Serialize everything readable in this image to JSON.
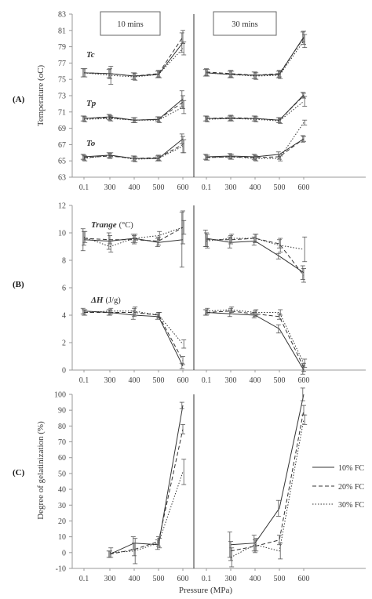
{
  "panel_labels": [
    "(A)",
    "(B)",
    "(C)"
  ],
  "time_labels": [
    "10 mins",
    "30 mins"
  ],
  "x_title": "Pressure (MPa)",
  "legend": [
    {
      "label": "10% FC",
      "dash": "solid"
    },
    {
      "label": "20% FC",
      "dash": "dashed"
    },
    {
      "label": "30% FC",
      "dash": "dotted"
    }
  ],
  "chart_data": [
    {
      "id": "A",
      "type": "line",
      "ylabel": "Temperature (oC)",
      "ylim": [
        63,
        83
      ],
      "yticks": [
        "63",
        "65",
        "67",
        "69",
        "71",
        "73",
        "75",
        "77",
        "79",
        "81",
        "83"
      ],
      "x": [
        "0.1",
        "300",
        "400",
        "500",
        "600"
      ],
      "groups": [
        {
          "name": "Tc",
          "subpanels": [
            {
              "time": "10 mins",
              "series": [
                {
                  "name": "10% FC",
                  "values": [
                    75.8,
                    75.7,
                    75.4,
                    75.6,
                    79.5
                  ],
                  "err": [
                    0.5,
                    0.5,
                    0.4,
                    0.4,
                    1.2
                  ]
                },
                {
                  "name": "20% FC",
                  "values": [
                    75.8,
                    75.7,
                    75.4,
                    75.7,
                    80.2
                  ],
                  "err": [
                    0.5,
                    0.6,
                    0.4,
                    0.4,
                    0.8
                  ]
                },
                {
                  "name": "30% FC",
                  "values": [
                    75.8,
                    75.5,
                    75.3,
                    75.6,
                    78.8
                  ],
                  "err": [
                    0.5,
                    1.1,
                    0.4,
                    0.4,
                    0.8
                  ]
                }
              ]
            },
            {
              "time": "30 mins",
              "series": [
                {
                  "name": "10% FC",
                  "values": [
                    75.8,
                    75.6,
                    75.5,
                    75.6,
                    80.2
                  ],
                  "err": [
                    0.4,
                    0.4,
                    0.4,
                    0.4,
                    0.6
                  ]
                },
                {
                  "name": "20% FC",
                  "values": [
                    75.9,
                    75.7,
                    75.5,
                    75.7,
                    80.1
                  ],
                  "err": [
                    0.4,
                    0.4,
                    0.4,
                    0.4,
                    0.8
                  ]
                },
                {
                  "name": "30% FC",
                  "values": [
                    75.8,
                    75.6,
                    75.4,
                    75.5,
                    79.7
                  ],
                  "err": [
                    0.4,
                    0.4,
                    0.4,
                    0.4,
                    0.8
                  ]
                }
              ]
            }
          ]
        },
        {
          "name": "Tp",
          "subpanels": [
            {
              "time": "10 mins",
              "series": [
                {
                  "name": "10% FC",
                  "values": [
                    70.2,
                    70.4,
                    70.0,
                    70.1,
                    72.6
                  ],
                  "err": [
                    0.3,
                    0.3,
                    0.3,
                    0.3,
                    1.0
                  ]
                },
                {
                  "name": "20% FC",
                  "values": [
                    70.2,
                    70.3,
                    70.0,
                    70.1,
                    72.2
                  ],
                  "err": [
                    0.3,
                    0.3,
                    0.3,
                    0.3,
                    0.8
                  ]
                },
                {
                  "name": "30% FC",
                  "values": [
                    70.1,
                    70.2,
                    70.0,
                    70.0,
                    71.6
                  ],
                  "err": [
                    0.3,
                    0.3,
                    0.3,
                    0.3,
                    0.8
                  ]
                }
              ]
            },
            {
              "time": "30 mins",
              "series": [
                {
                  "name": "10% FC",
                  "values": [
                    70.2,
                    70.2,
                    70.2,
                    70.0,
                    73.1
                  ],
                  "err": [
                    0.3,
                    0.3,
                    0.3,
                    0.3,
                    0.3
                  ]
                },
                {
                  "name": "20% FC",
                  "values": [
                    70.2,
                    70.3,
                    70.2,
                    70.0,
                    73.0
                  ],
                  "err": [
                    0.3,
                    0.3,
                    0.3,
                    0.3,
                    0.3
                  ]
                },
                {
                  "name": "30% FC",
                  "values": [
                    70.1,
                    70.2,
                    70.1,
                    69.9,
                    72.3
                  ],
                  "err": [
                    0.3,
                    0.3,
                    0.3,
                    0.3,
                    0.6
                  ]
                }
              ]
            }
          ]
        },
        {
          "name": "To",
          "subpanels": [
            {
              "time": "10 mins",
              "series": [
                {
                  "name": "10% FC",
                  "values": [
                    65.5,
                    65.7,
                    65.3,
                    65.3,
                    67.7
                  ],
                  "err": [
                    0.3,
                    0.3,
                    0.3,
                    0.3,
                    0.6
                  ]
                },
                {
                  "name": "20% FC",
                  "values": [
                    65.4,
                    65.6,
                    65.3,
                    65.4,
                    67.0
                  ],
                  "err": [
                    0.3,
                    0.3,
                    0.3,
                    0.3,
                    1.0
                  ]
                },
                {
                  "name": "30% FC",
                  "values": [
                    65.3,
                    65.7,
                    65.2,
                    65.3,
                    66.8
                  ],
                  "err": [
                    0.3,
                    0.3,
                    0.3,
                    0.3,
                    0.8
                  ]
                }
              ]
            },
            {
              "time": "30 mins",
              "series": [
                {
                  "name": "10% FC",
                  "values": [
                    65.5,
                    65.6,
                    65.5,
                    65.8,
                    67.7
                  ],
                  "err": [
                    0.3,
                    0.3,
                    0.3,
                    0.3,
                    0.4
                  ]
                },
                {
                  "name": "20% FC",
                  "values": [
                    65.4,
                    65.5,
                    65.4,
                    65.5,
                    67.7
                  ],
                  "err": [
                    0.3,
                    0.3,
                    0.3,
                    0.3,
                    0.3
                  ]
                },
                {
                  "name": "30% FC",
                  "values": [
                    65.4,
                    65.5,
                    65.3,
                    65.3,
                    69.7
                  ],
                  "err": [
                    0.3,
                    0.3,
                    0.3,
                    0.3,
                    0.3
                  ]
                }
              ]
            }
          ]
        }
      ]
    },
    {
      "id": "B",
      "type": "line",
      "ylabel": "",
      "ylim": [
        0,
        12
      ],
      "yticks": [
        "0",
        "2",
        "4",
        "6",
        "8",
        "10",
        "12"
      ],
      "x": [
        "0.1",
        "300",
        "400",
        "500",
        "600"
      ],
      "groups": [
        {
          "name": "Trange",
          "unit": "(°C)",
          "subpanels": [
            {
              "time": "10 mins",
              "series": [
                {
                  "name": "10% FC",
                  "values": [
                    9.5,
                    9.4,
                    9.6,
                    9.3,
                    9.5
                  ],
                  "err": [
                    0.8,
                    0.6,
                    0.3,
                    0.3,
                    2.0
                  ]
                },
                {
                  "name": "20% FC",
                  "values": [
                    9.6,
                    9.5,
                    9.5,
                    9.4,
                    10.4
                  ],
                  "err": [
                    0.5,
                    0.3,
                    0.3,
                    0.3,
                    1.2
                  ]
                },
                {
                  "name": "30% FC",
                  "values": [
                    9.7,
                    9.0,
                    9.6,
                    9.8,
                    10.4
                  ],
                  "err": [
                    0.4,
                    0.4,
                    0.3,
                    0.3,
                    0.5
                  ]
                }
              ]
            },
            {
              "time": "30 mins",
              "series": [
                {
                  "name": "10% FC",
                  "values": [
                    9.6,
                    9.3,
                    9.4,
                    8.3,
                    7.1
                  ],
                  "err": [
                    0.6,
                    0.4,
                    0.3,
                    0.2,
                    0.5
                  ]
                },
                {
                  "name": "20% FC",
                  "values": [
                    9.5,
                    9.5,
                    9.6,
                    9.2,
                    6.9
                  ],
                  "err": [
                    0.5,
                    0.3,
                    0.3,
                    0.3,
                    0.5
                  ]
                },
                {
                  "name": "30% FC",
                  "values": [
                    9.4,
                    9.6,
                    9.6,
                    9.1,
                    8.8
                  ],
                  "err": [
                    0.5,
                    0.3,
                    0.3,
                    0.5,
                    0.9
                  ]
                }
              ]
            }
          ]
        },
        {
          "name": "ΔH",
          "unit": "(J/g)",
          "subpanels": [
            {
              "time": "10 mins",
              "series": [
                {
                  "name": "10% FC",
                  "values": [
                    4.3,
                    4.2,
                    4.0,
                    3.9,
                    0.3
                  ],
                  "err": [
                    0.2,
                    0.2,
                    0.3,
                    0.2,
                    0.2
                  ]
                },
                {
                  "name": "20% FC",
                  "values": [
                    4.2,
                    4.2,
                    4.2,
                    4.0,
                    0.7
                  ],
                  "err": [
                    0.2,
                    0.2,
                    0.3,
                    0.2,
                    0.3
                  ]
                },
                {
                  "name": "30% FC",
                  "values": [
                    4.2,
                    4.3,
                    4.3,
                    4.0,
                    1.9
                  ],
                  "err": [
                    0.2,
                    0.2,
                    0.3,
                    0.2,
                    0.3
                  ]
                }
              ]
            },
            {
              "time": "30 mins",
              "series": [
                {
                  "name": "10% FC",
                  "values": [
                    4.2,
                    4.1,
                    4.0,
                    3.0,
                    0.0
                  ],
                  "err": [
                    0.2,
                    0.2,
                    0.2,
                    0.3,
                    0.3
                  ]
                },
                {
                  "name": "20% FC",
                  "values": [
                    4.2,
                    4.3,
                    4.1,
                    3.9,
                    0.2
                  ],
                  "err": [
                    0.2,
                    0.2,
                    0.2,
                    0.2,
                    0.3
                  ]
                },
                {
                  "name": "30% FC",
                  "values": [
                    4.3,
                    4.4,
                    4.2,
                    4.2,
                    0.5
                  ],
                  "err": [
                    0.2,
                    0.2,
                    0.2,
                    0.2,
                    0.3
                  ]
                }
              ]
            }
          ]
        }
      ]
    },
    {
      "id": "C",
      "type": "line",
      "ylabel": "Degree of gelatinization (%)",
      "ylim": [
        -10,
        100
      ],
      "yticks": [
        "-10",
        "0",
        "10",
        "20",
        "30",
        "40",
        "50",
        "60",
        "70",
        "80",
        "90",
        "100"
      ],
      "x": [
        "0.1",
        "300",
        "400",
        "500",
        "600"
      ],
      "subpanels": [
        {
          "time": "10 mins",
          "series": [
            {
              "name": "10% FC",
              "values": [
                null,
                -1,
                6,
                5,
                93
              ],
              "err": [
                null,
                2,
                4,
                3,
                2
              ]
            },
            {
              "name": "20% FC",
              "values": [
                null,
                -1,
                2,
                7,
                78
              ],
              "err": [
                null,
                2,
                4,
                3,
                3
              ]
            },
            {
              "name": "30% FC",
              "values": [
                null,
                0,
                1,
                6,
                51
              ],
              "err": [
                null,
                3,
                8,
                3,
                8
              ]
            }
          ]
        },
        {
          "time": "30 mins",
          "series": [
            {
              "name": "10% FC",
              "values": [
                null,
                5,
                6,
                28,
                100
              ],
              "err": [
                null,
                8,
                5,
                5,
                4
              ]
            },
            {
              "name": "20% FC",
              "values": [
                null,
                1,
                4,
                8,
                90
              ],
              "err": [
                null,
                6,
                4,
                3,
                3
              ]
            },
            {
              "name": "30% FC",
              "values": [
                null,
                -3,
                5,
                1,
                84
              ],
              "err": [
                null,
                6,
                4,
                5,
                3
              ]
            }
          ]
        }
      ]
    }
  ]
}
